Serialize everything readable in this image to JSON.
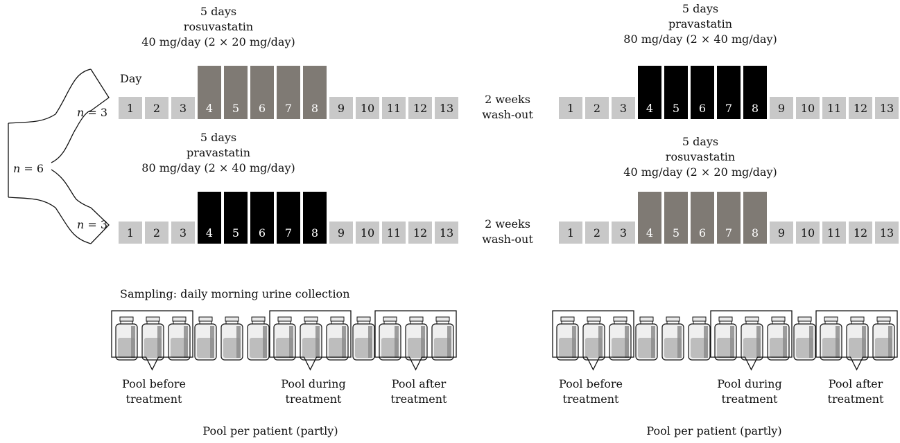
{
  "diagram": {
    "day_label": "Day",
    "days": [
      "1",
      "2",
      "3",
      "4",
      "5",
      "6",
      "7",
      "8",
      "9",
      "10",
      "11",
      "12",
      "13"
    ],
    "n_total": "n = 6",
    "n_group": "n = 3",
    "n_var": "n",
    "n_eq_total": " = 6",
    "n_eq_group": " = 3",
    "washout_line1": "2 weeks",
    "washout_line2": "wash-out",
    "groups": [
      {
        "period1": {
          "line1": "5 days",
          "line2": "rosuvastatin",
          "line3": "40 mg/day (2 × 20 mg/day)",
          "drug": "rosuvastatin"
        },
        "period2": {
          "line1": "5 days",
          "line2": "pravastatin",
          "line3": "80 mg/day (2 × 40 mg/day)",
          "drug": "pravastatin"
        }
      },
      {
        "period1": {
          "line1": "5 days",
          "line2": "pravastatin",
          "line3": "80 mg/day (2 × 40 mg/day)",
          "drug": "pravastatin"
        },
        "period2": {
          "line1": "5 days",
          "line2": "rosuvastatin",
          "line3": "40 mg/day (2 × 20 mg/day)",
          "drug": "rosuvastatin"
        }
      }
    ],
    "treatment_days": [
      "4",
      "5",
      "6",
      "7",
      "8"
    ],
    "sampling_label": "Sampling: daily morning urine collection",
    "pools": [
      {
        "line1": "Pool before",
        "line2": "treatment"
      },
      {
        "line1": "Pool during",
        "line2": "treatment"
      },
      {
        "line1": "Pool after",
        "line2": "treatment"
      }
    ],
    "pool_per_patient": "Pool per patient (partly)",
    "colors": {
      "normal_day": "#c8c8c8",
      "rosuvastatin_day": "#7f7a74",
      "pravastatin_day": "#000000",
      "text": "#111111"
    }
  }
}
